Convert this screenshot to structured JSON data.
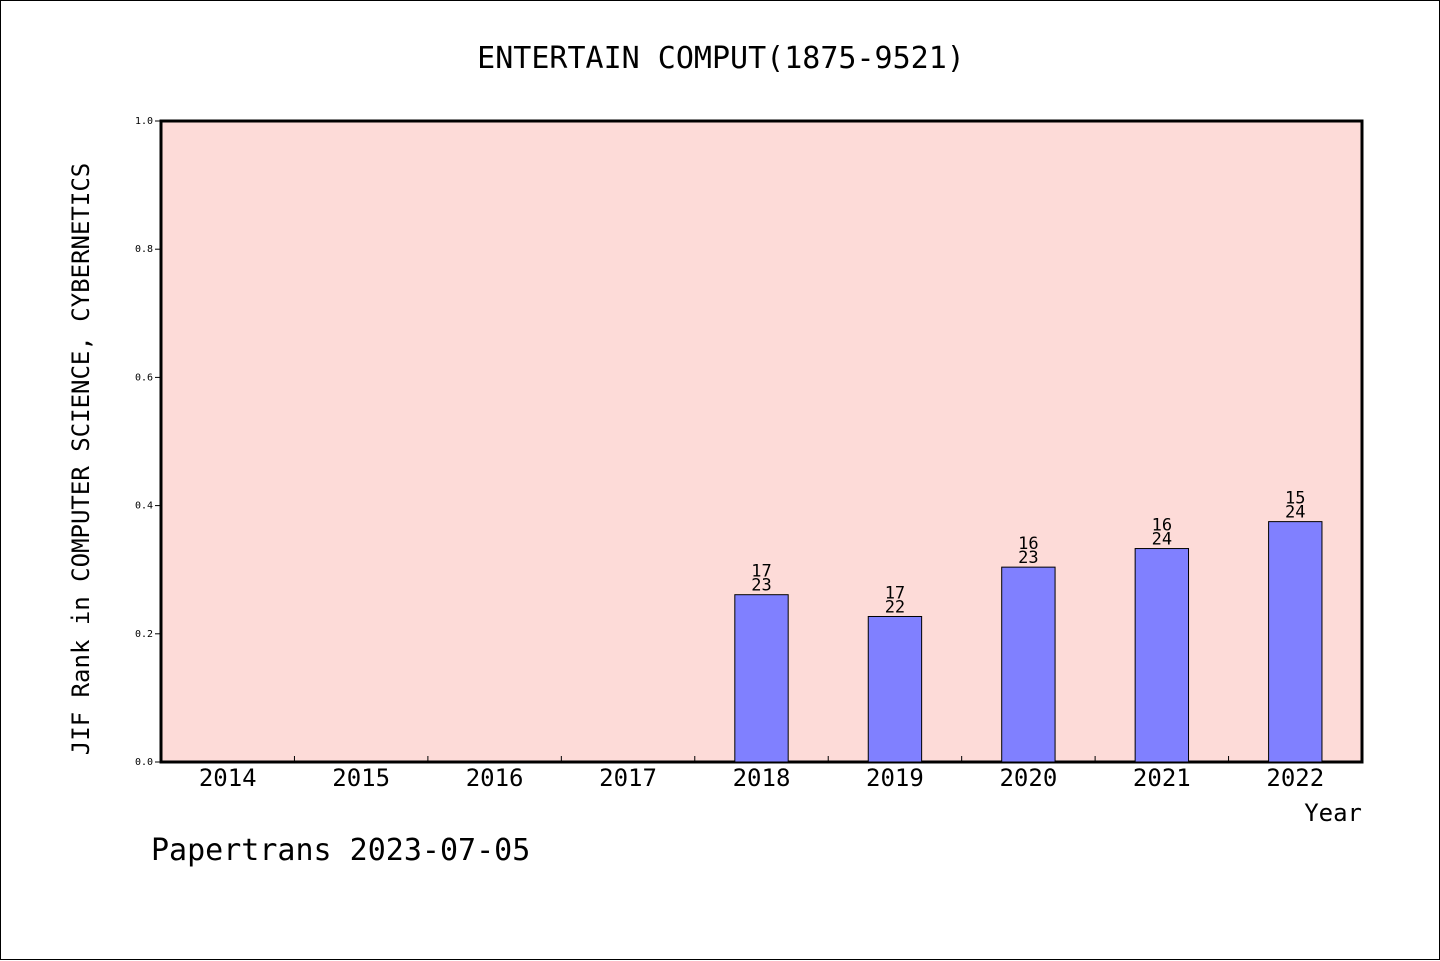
{
  "chart_data": {
    "type": "bar",
    "title": "ENTERTAIN COMPUT(1875-9521)",
    "xlabel": "Year",
    "ylabel": "JIF Rank in COMPUTER SCIENCE, CYBERNETICS",
    "categories": [
      "2014",
      "2015",
      "2016",
      "2017",
      "2018",
      "2019",
      "2020",
      "2021",
      "2022"
    ],
    "series": [
      {
        "values": [
          null,
          null,
          null,
          null,
          0.261,
          0.227,
          0.304,
          0.333,
          0.375
        ],
        "rank": [
          null,
          null,
          null,
          null,
          "17",
          "17",
          "16",
          "16",
          "15"
        ],
        "total": [
          null,
          null,
          null,
          null,
          "23",
          "22",
          "23",
          "24",
          "24"
        ]
      }
    ],
    "ylim": [
      0,
      1.0
    ],
    "yticks": [
      "0.0",
      "0.2",
      "0.4",
      "0.6",
      "0.8",
      "1.0"
    ],
    "grid": false,
    "colors": {
      "plot_background": "#fddbd8",
      "bar_fill": "#8080ff",
      "bar_edge": "#000000"
    }
  },
  "footer": "Papertrans 2023-07-05"
}
